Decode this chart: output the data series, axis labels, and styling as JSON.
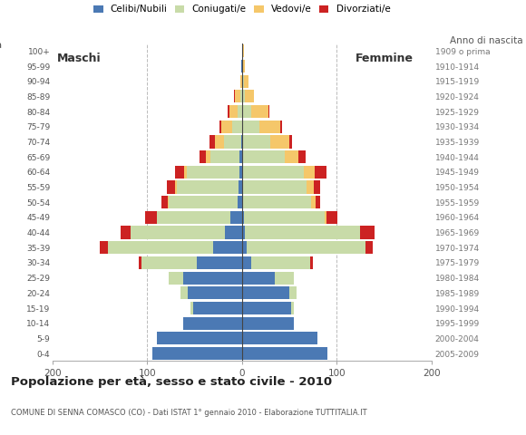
{
  "title": "Popolazione per età, sesso e stato civile - 2010",
  "subtitle": "COMUNE DI SENNA COMASCO (CO) - Dati ISTAT 1° gennaio 2010 - Elaborazione TUTTITALIA.IT",
  "ylabel_left": "Età",
  "ylabel_right": "Anno di nascita",
  "xlim": 200,
  "age_groups": [
    "0-4",
    "5-9",
    "10-14",
    "15-19",
    "20-24",
    "25-29",
    "30-34",
    "35-39",
    "40-44",
    "45-49",
    "50-54",
    "55-59",
    "60-64",
    "65-69",
    "70-74",
    "75-79",
    "80-84",
    "85-89",
    "90-94",
    "95-99",
    "100+"
  ],
  "birth_years": [
    "2005-2009",
    "2000-2004",
    "1995-1999",
    "1990-1994",
    "1985-1989",
    "1980-1984",
    "1975-1979",
    "1970-1974",
    "1965-1969",
    "1960-1964",
    "1955-1959",
    "1950-1954",
    "1945-1949",
    "1940-1944",
    "1935-1939",
    "1930-1934",
    "1925-1929",
    "1920-1924",
    "1915-1919",
    "1910-1914",
    "1909 o prima"
  ],
  "colors": {
    "celibe": "#4B79B4",
    "coniugato": "#C8DBA8",
    "vedovo": "#F5C76A",
    "divorziato": "#CC2222"
  },
  "legend_labels": [
    "Celibi/Nubili",
    "Coniugati/e",
    "Vedovi/e",
    "Divorziati/e"
  ],
  "maschi": {
    "celibe": [
      95,
      90,
      62,
      52,
      57,
      62,
      48,
      30,
      18,
      12,
      5,
      4,
      3,
      3,
      1,
      0,
      0,
      0,
      0,
      1,
      0
    ],
    "coniugato": [
      0,
      0,
      0,
      2,
      8,
      15,
      58,
      112,
      100,
      78,
      72,
      65,
      55,
      30,
      18,
      10,
      5,
      2,
      0,
      0,
      0
    ],
    "vedovo": [
      0,
      0,
      0,
      0,
      0,
      0,
      0,
      0,
      0,
      0,
      1,
      2,
      3,
      5,
      10,
      12,
      8,
      5,
      2,
      0,
      0
    ],
    "divorziato": [
      0,
      0,
      0,
      0,
      0,
      0,
      3,
      8,
      10,
      12,
      7,
      8,
      10,
      7,
      5,
      2,
      2,
      1,
      0,
      0,
      0
    ]
  },
  "femmine": {
    "nubile": [
      90,
      80,
      55,
      52,
      50,
      35,
      10,
      5,
      3,
      2,
      1,
      0,
      0,
      0,
      0,
      0,
      0,
      0,
      0,
      0,
      0
    ],
    "coniugata": [
      0,
      0,
      0,
      3,
      8,
      20,
      62,
      125,
      122,
      85,
      72,
      68,
      65,
      45,
      30,
      18,
      10,
      3,
      2,
      0,
      0
    ],
    "vedova": [
      0,
      0,
      0,
      0,
      0,
      0,
      0,
      0,
      0,
      2,
      5,
      8,
      12,
      15,
      20,
      22,
      18,
      10,
      5,
      3,
      2
    ],
    "divorziata": [
      0,
      0,
      0,
      0,
      0,
      0,
      3,
      8,
      15,
      12,
      5,
      7,
      12,
      7,
      3,
      2,
      1,
      0,
      0,
      0,
      0
    ]
  },
  "background_color": "#ffffff",
  "grid_color": "#bbbbbb"
}
